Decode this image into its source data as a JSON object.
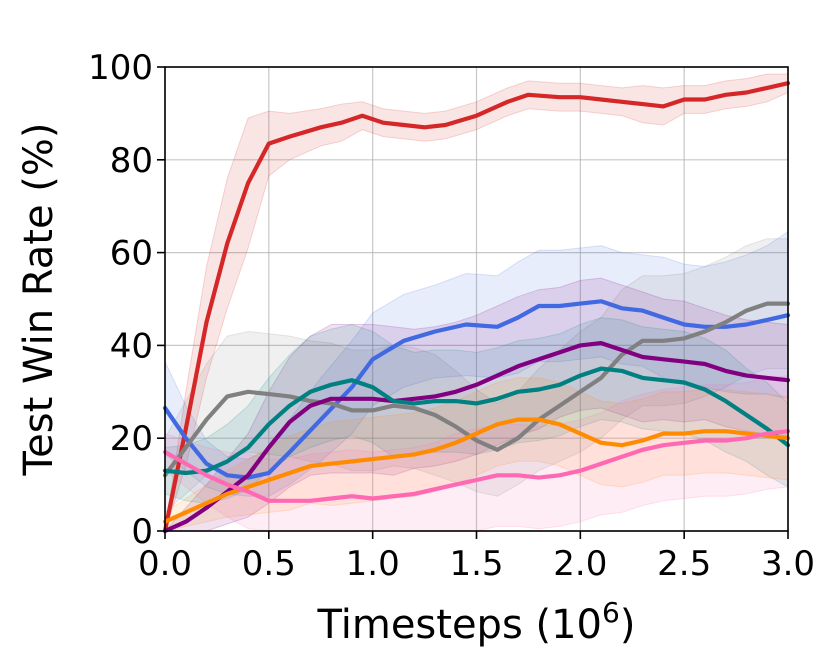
{
  "chart_data": {
    "type": "line",
    "title": "",
    "xlabel": "Timesteps (10",
    "xlabel_sup": "6",
    "xlabel_close": ")",
    "ylabel": "Test Win Rate (%)",
    "xlim": [
      0,
      3
    ],
    "ylim": [
      0,
      100
    ],
    "xticks": [
      "0.0",
      "0.5",
      "1.0",
      "1.5",
      "2.0",
      "2.5",
      "3.0"
    ],
    "yticks": [
      "0",
      "20",
      "40",
      "60",
      "80",
      "100"
    ],
    "grid": true,
    "legend": "none",
    "series": [
      {
        "color": "#d62728",
        "x": [
          0,
          0.1,
          0.2,
          0.3,
          0.4,
          0.5,
          0.6,
          0.75,
          0.85,
          0.95,
          1.05,
          1.15,
          1.25,
          1.35,
          1.5,
          1.65,
          1.75,
          1.9,
          2.0,
          2.1,
          2.2,
          2.3,
          2.4,
          2.5,
          2.6,
          2.7,
          2.8,
          2.9,
          3.0
        ],
        "y": [
          0,
          22,
          45,
          62,
          75,
          83.5,
          85,
          87,
          88,
          89.5,
          88,
          87.5,
          87,
          87.5,
          89.5,
          92.5,
          94,
          93.5,
          93.5,
          93,
          92.5,
          92,
          91.5,
          93,
          93,
          94,
          94.5,
          95.5,
          96.5
        ],
        "band": [
          0,
          8,
          12,
          14,
          14,
          7,
          5,
          4,
          4,
          3,
          3,
          3,
          3,
          3,
          3,
          3,
          3,
          3,
          3,
          3,
          3,
          4,
          4,
          3,
          3,
          3,
          3,
          3,
          2
        ]
      },
      {
        "color": "#4169e1",
        "x": [
          0,
          0.1,
          0.2,
          0.3,
          0.4,
          0.5,
          0.6,
          0.75,
          0.9,
          1.0,
          1.15,
          1.3,
          1.45,
          1.6,
          1.7,
          1.8,
          1.9,
          2.0,
          2.1,
          2.2,
          2.3,
          2.4,
          2.5,
          2.6,
          2.7,
          2.8,
          2.9,
          3.0
        ],
        "y": [
          26.5,
          20,
          14.5,
          12,
          11.5,
          12.5,
          17,
          24,
          31,
          37,
          41,
          43,
          44.5,
          44,
          46,
          48.5,
          48.5,
          49,
          49.5,
          48,
          47.5,
          46,
          44.5,
          44,
          44,
          44.5,
          45.5,
          46.5
        ],
        "band": [
          10,
          7,
          5,
          4,
          4,
          5,
          7,
          9,
          10,
          10,
          10,
          10,
          11,
          11,
          12,
          12,
          12,
          12,
          12,
          12,
          12,
          13,
          13,
          13,
          14,
          15,
          16,
          18
        ]
      },
      {
        "color": "#808080",
        "x": [
          0,
          0.1,
          0.2,
          0.3,
          0.4,
          0.5,
          0.6,
          0.7,
          0.8,
          0.9,
          1.0,
          1.1,
          1.2,
          1.3,
          1.4,
          1.5,
          1.6,
          1.7,
          1.8,
          1.9,
          2.0,
          2.1,
          2.2,
          2.3,
          2.4,
          2.5,
          2.6,
          2.7,
          2.8,
          2.9,
          3.0
        ],
        "y": [
          12,
          18,
          24,
          29,
          30,
          29.5,
          29,
          28,
          27.5,
          26,
          26,
          27,
          26.5,
          25,
          22.5,
          19.5,
          17.5,
          20,
          24,
          27,
          30,
          33,
          38,
          41,
          41,
          41.5,
          43,
          45,
          47.5,
          49,
          49
        ],
        "band": [
          8,
          10,
          12,
          13,
          13,
          13,
          13,
          13,
          13,
          13,
          13,
          13,
          13,
          13,
          12,
          11,
          10,
          10,
          11,
          12,
          13,
          13,
          14,
          14,
          14,
          14,
          14,
          14,
          14,
          14,
          14
        ]
      },
      {
        "color": "#800080",
        "x": [
          0,
          0.1,
          0.2,
          0.3,
          0.4,
          0.5,
          0.6,
          0.7,
          0.8,
          0.9,
          1.0,
          1.1,
          1.2,
          1.3,
          1.4,
          1.5,
          1.6,
          1.7,
          1.8,
          1.9,
          2.0,
          2.1,
          2.2,
          2.3,
          2.4,
          2.5,
          2.6,
          2.7,
          2.8,
          2.9,
          3.0
        ],
        "y": [
          0,
          2,
          5,
          8.5,
          12,
          18,
          23.5,
          27,
          28.5,
          28.5,
          28.5,
          28,
          28.5,
          29,
          30,
          31.5,
          33.5,
          35.5,
          37,
          38.5,
          40,
          40.5,
          39,
          37.5,
          37,
          36.5,
          36,
          34.5,
          33.5,
          33,
          32.5
        ],
        "band": [
          0,
          3,
          5,
          7,
          9,
          12,
          14,
          15,
          16,
          16,
          16,
          16,
          15,
          15,
          15,
          15,
          15,
          15,
          15,
          14,
          14,
          14,
          14,
          14,
          13,
          13,
          12,
          12,
          12,
          12,
          12
        ]
      },
      {
        "color": "#008080",
        "x": [
          0,
          0.1,
          0.2,
          0.3,
          0.4,
          0.5,
          0.6,
          0.7,
          0.8,
          0.9,
          1.0,
          1.1,
          1.2,
          1.3,
          1.4,
          1.5,
          1.6,
          1.7,
          1.8,
          1.9,
          2.0,
          2.1,
          2.2,
          2.3,
          2.4,
          2.5,
          2.6,
          2.7,
          2.8,
          2.9,
          3.0
        ],
        "y": [
          13,
          12.5,
          13,
          15,
          18,
          23,
          27,
          30,
          31.5,
          32.5,
          31,
          28,
          27.5,
          28,
          28,
          27.5,
          28.5,
          30,
          30.5,
          31.5,
          33.5,
          35,
          34.5,
          33,
          32.5,
          32,
          30.5,
          28,
          25,
          22,
          18.5
        ],
        "band": [
          5,
          6,
          7,
          8,
          9,
          10,
          11,
          12,
          12,
          12,
          12,
          12,
          11,
          11,
          11,
          11,
          11,
          11,
          11,
          11,
          11,
          11,
          11,
          11,
          11,
          11,
          11,
          11,
          10,
          10,
          9
        ]
      },
      {
        "color": "#ff8c00",
        "x": [
          0,
          0.1,
          0.2,
          0.3,
          0.4,
          0.5,
          0.6,
          0.7,
          0.8,
          0.9,
          1.0,
          1.1,
          1.2,
          1.3,
          1.4,
          1.5,
          1.6,
          1.7,
          1.8,
          1.9,
          2.0,
          2.1,
          2.2,
          2.3,
          2.4,
          2.5,
          2.6,
          2.7,
          2.8,
          2.9,
          3.0
        ],
        "y": [
          2,
          4,
          6,
          8,
          9.5,
          11,
          12.5,
          14,
          14.5,
          15,
          15.5,
          16,
          16.5,
          17.5,
          19,
          21,
          23,
          24,
          24,
          23,
          21,
          19,
          18.5,
          19.5,
          21,
          21,
          21.5,
          21.5,
          21,
          20.5,
          20
        ],
        "band": [
          2,
          3,
          4,
          5,
          6,
          7,
          8,
          8,
          9,
          9,
          9,
          9,
          9,
          9,
          9,
          9,
          9,
          9,
          9,
          9,
          9,
          9,
          9,
          9,
          9,
          9,
          9,
          9,
          9,
          9,
          9
        ]
      },
      {
        "color": "#ff69b4",
        "x": [
          0,
          0.1,
          0.2,
          0.3,
          0.4,
          0.5,
          0.6,
          0.7,
          0.8,
          0.9,
          1.0,
          1.1,
          1.2,
          1.3,
          1.4,
          1.5,
          1.6,
          1.7,
          1.8,
          1.9,
          2.0,
          2.1,
          2.2,
          2.3,
          2.4,
          2.5,
          2.6,
          2.7,
          2.8,
          2.9,
          3.0
        ],
        "y": [
          17,
          14.5,
          12,
          10,
          8.5,
          6.5,
          6.5,
          6.5,
          7,
          7.5,
          7,
          7.5,
          8,
          9,
          10,
          11,
          12,
          12,
          11.5,
          12,
          13,
          14.5,
          16,
          17.5,
          18.5,
          19,
          19.5,
          19.5,
          20,
          21,
          21.5
        ],
        "band": [
          4,
          5,
          6,
          7,
          8,
          9,
          9,
          10,
          10,
          10,
          10,
          10,
          10,
          10,
          11,
          11,
          11,
          11,
          11,
          11,
          11,
          11,
          12,
          12,
          12,
          12,
          12,
          12,
          12,
          12,
          12
        ]
      }
    ]
  }
}
